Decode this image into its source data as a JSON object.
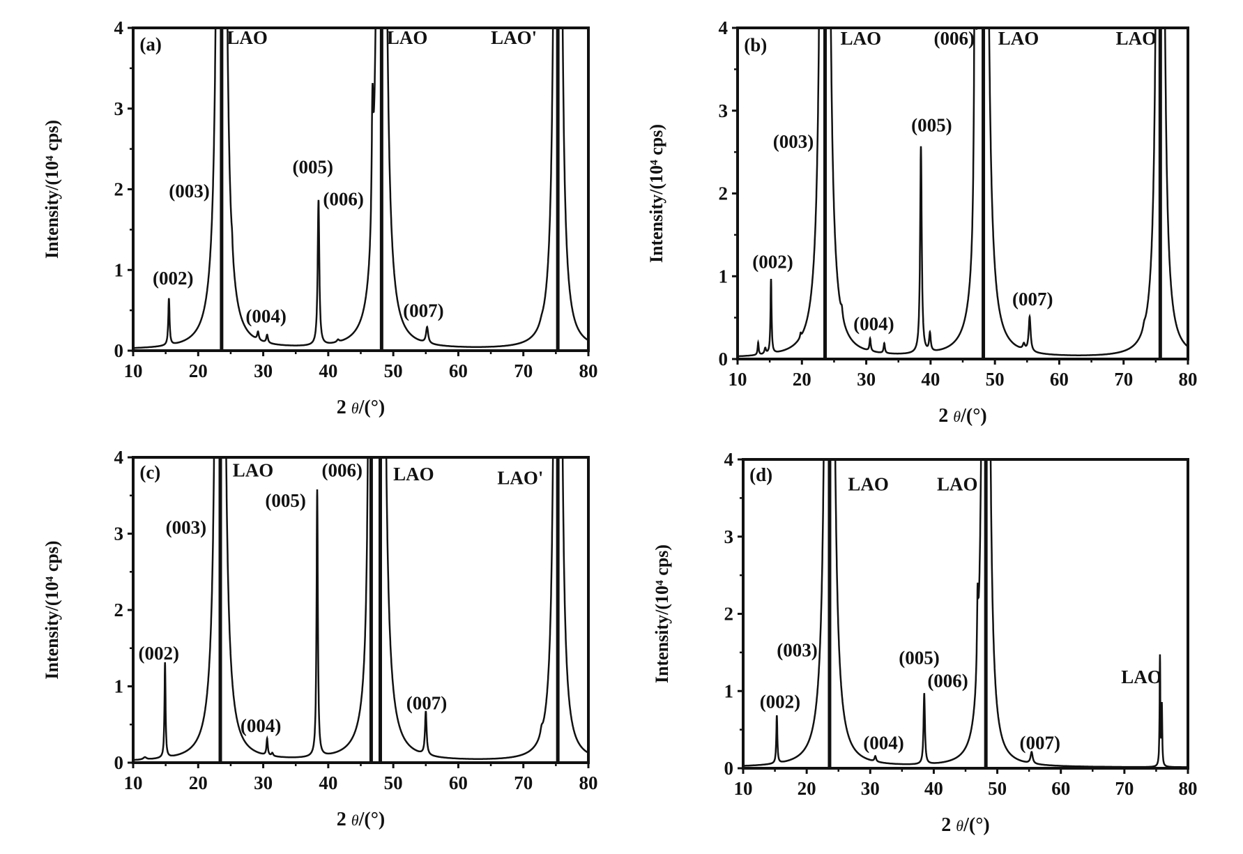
{
  "chart_data": [
    {
      "type": "line",
      "panel_label": "(a)",
      "xlabel_parts": [
        "2 ",
        "θ",
        "/(°)"
      ],
      "ylabel": "Intensity/(10⁴ cps)",
      "xlim": [
        10,
        80
      ],
      "ylim": [
        0,
        4
      ],
      "xticks": [
        "10",
        "20",
        "30",
        "40",
        "50",
        "60",
        "70",
        "80"
      ],
      "yticks": [
        "0",
        "1",
        "2",
        "3",
        "4"
      ],
      "peaks": [
        {
          "x": 15.5,
          "h": 0.58,
          "w": 0.12
        },
        {
          "x": 23.0,
          "h": 1.6,
          "w": 0.15
        },
        {
          "x": 23.6,
          "h": 40,
          "w": 0.3,
          "substrate": true
        },
        {
          "x": 25.2,
          "h": 0.12,
          "w": 0.1
        },
        {
          "x": 29.2,
          "h": 0.1,
          "w": 0.15
        },
        {
          "x": 30.6,
          "h": 0.1,
          "w": 0.15
        },
        {
          "x": 38.5,
          "h": 1.8,
          "w": 0.15
        },
        {
          "x": 41.5,
          "h": 0.03,
          "w": 0.2
        },
        {
          "x": 46.8,
          "h": 1.48,
          "w": 0.15
        },
        {
          "x": 47.9,
          "h": 1.95,
          "w": 0.15
        },
        {
          "x": 48.2,
          "h": 40,
          "w": 0.3,
          "substrate": true
        },
        {
          "x": 55.2,
          "h": 0.2,
          "w": 0.2
        },
        {
          "x": 72.8,
          "h": 0.03,
          "w": 0.3
        },
        {
          "x": 75.3,
          "h": 40,
          "w": 0.25,
          "substrate": true
        }
      ],
      "annotations": [
        {
          "text": "LAO",
          "x": 24.4,
          "y": 3.8
        },
        {
          "text": "LAO",
          "x": 49.0,
          "y": 3.8
        },
        {
          "text": "LAO'",
          "x": 65.0,
          "y": 3.8
        },
        {
          "text": "(003)",
          "x": 15.5,
          "y": 1.9
        },
        {
          "text": "(005)",
          "x": 34.5,
          "y": 2.2
        },
        {
          "text": "(006)",
          "x": 39.2,
          "y": 1.8
        },
        {
          "text": "(002)",
          "x": 13.0,
          "y": 0.82
        },
        {
          "text": "(004)",
          "x": 27.3,
          "y": 0.35
        },
        {
          "text": "(007)",
          "x": 51.5,
          "y": 0.42
        }
      ]
    },
    {
      "type": "line",
      "panel_label": "(b)",
      "xlabel_parts": [
        "2 ",
        "θ",
        "/(°)"
      ],
      "ylabel": "Intensity/(10⁴ cps)",
      "xlim": [
        10,
        80
      ],
      "ylim": [
        0,
        4
      ],
      "xticks": [
        "10",
        "20",
        "30",
        "40",
        "50",
        "60",
        "70",
        "80"
      ],
      "yticks": [
        "0",
        "1",
        "2",
        "3",
        "4"
      ],
      "peaks": [
        {
          "x": 13.2,
          "h": 0.15,
          "w": 0.1
        },
        {
          "x": 14.3,
          "h": 0.07,
          "w": 0.15
        },
        {
          "x": 15.2,
          "h": 0.9,
          "w": 0.1
        },
        {
          "x": 19.8,
          "h": 0.05,
          "w": 0.1
        },
        {
          "x": 23.0,
          "h": 2.35,
          "w": 0.15
        },
        {
          "x": 23.6,
          "h": 40,
          "w": 0.3,
          "substrate": true
        },
        {
          "x": 26.2,
          "h": 0.1,
          "w": 0.15
        },
        {
          "x": 30.6,
          "h": 0.15,
          "w": 0.12
        },
        {
          "x": 32.8,
          "h": 0.12,
          "w": 0.12
        },
        {
          "x": 38.5,
          "h": 2.5,
          "w": 0.15
        },
        {
          "x": 39.9,
          "h": 0.22,
          "w": 0.15
        },
        {
          "x": 46.9,
          "h": 3.55,
          "w": 0.15
        },
        {
          "x": 48.2,
          "h": 40,
          "w": 0.3,
          "substrate": true
        },
        {
          "x": 54.5,
          "h": 0.07,
          "w": 0.2
        },
        {
          "x": 55.4,
          "h": 0.42,
          "w": 0.18
        },
        {
          "x": 73.2,
          "h": 0.05,
          "w": 0.2
        },
        {
          "x": 75.7,
          "h": 40,
          "w": 0.25,
          "substrate": true
        }
      ],
      "annotations": [
        {
          "text": "LAO",
          "x": 26.0,
          "y": 3.8
        },
        {
          "text": "(006)",
          "x": 40.5,
          "y": 3.8
        },
        {
          "text": "LAO",
          "x": 50.5,
          "y": 3.8
        },
        {
          "text": "LAO",
          "x": 68.8,
          "y": 3.8
        },
        {
          "text": "(003)",
          "x": 15.5,
          "y": 2.55
        },
        {
          "text": "(005)",
          "x": 37.0,
          "y": 2.75
        },
        {
          "text": "(002)",
          "x": 12.3,
          "y": 1.1
        },
        {
          "text": "(004)",
          "x": 28.0,
          "y": 0.35
        },
        {
          "text": "(007)",
          "x": 52.7,
          "y": 0.65
        }
      ]
    },
    {
      "type": "line",
      "panel_label": "(c)",
      "xlabel_parts": [
        "2 ",
        "θ",
        "/(°)"
      ],
      "ylabel": "Intensity/(10⁴ cps)",
      "xlim": [
        10,
        80
      ],
      "ylim": [
        0,
        4
      ],
      "xticks": [
        "10",
        "20",
        "30",
        "40",
        "50",
        "60",
        "70",
        "80"
      ],
      "yticks": [
        "0",
        "1",
        "2",
        "3",
        "4"
      ],
      "peaks": [
        {
          "x": 11.8,
          "h": 0.03,
          "w": 0.3
        },
        {
          "x": 14.9,
          "h": 1.25,
          "w": 0.1
        },
        {
          "x": 22.8,
          "h": 3.2,
          "w": 0.15
        },
        {
          "x": 23.4,
          "h": 40,
          "w": 0.3,
          "substrate": true
        },
        {
          "x": 30.6,
          "h": 0.22,
          "w": 0.12
        },
        {
          "x": 31.4,
          "h": 0.04,
          "w": 0.15
        },
        {
          "x": 38.3,
          "h": 3.5,
          "w": 0.12
        },
        {
          "x": 46.6,
          "h": 40,
          "w": 0.15,
          "substrate": true
        },
        {
          "x": 48.0,
          "h": 40,
          "w": 0.3,
          "substrate": true
        },
        {
          "x": 55.0,
          "h": 0.57,
          "w": 0.15
        },
        {
          "x": 72.8,
          "h": 0.08,
          "w": 0.2
        },
        {
          "x": 75.3,
          "h": 40,
          "w": 0.25,
          "substrate": true
        }
      ],
      "annotations": [
        {
          "text": "LAO",
          "x": 25.3,
          "y": 3.75
        },
        {
          "text": "(006)",
          "x": 39.0,
          "y": 3.75
        },
        {
          "text": "LAO",
          "x": 50.0,
          "y": 3.7
        },
        {
          "text": "LAO'",
          "x": 66.0,
          "y": 3.65
        },
        {
          "text": "(005)",
          "x": 30.3,
          "y": 3.35
        },
        {
          "text": "(003)",
          "x": 15.0,
          "y": 3.0
        },
        {
          "text": "(002)",
          "x": 10.8,
          "y": 1.35
        },
        {
          "text": "(004)",
          "x": 26.5,
          "y": 0.4
        },
        {
          "text": "(007)",
          "x": 52.0,
          "y": 0.7
        }
      ]
    },
    {
      "type": "line",
      "panel_label": "(d)",
      "xlabel_parts": [
        "2 ",
        "θ",
        "/(°)"
      ],
      "ylabel": "Intensity/(10⁴ cps)",
      "xlim": [
        10,
        80
      ],
      "ylim": [
        0,
        4
      ],
      "xticks": [
        "10",
        "20",
        "30",
        "40",
        "50",
        "60",
        "70",
        "80"
      ],
      "yticks": [
        "0",
        "1",
        "2",
        "3",
        "4"
      ],
      "peaks": [
        {
          "x": 15.3,
          "h": 0.62,
          "w": 0.1
        },
        {
          "x": 23.0,
          "h": 1.35,
          "w": 0.15
        },
        {
          "x": 23.6,
          "h": 40,
          "w": 0.3,
          "substrate": true
        },
        {
          "x": 30.8,
          "h": 0.07,
          "w": 0.15
        },
        {
          "x": 38.5,
          "h": 0.92,
          "w": 0.13
        },
        {
          "x": 46.9,
          "h": 0.92,
          "w": 0.12
        },
        {
          "x": 47.8,
          "h": 1.6,
          "w": 0.1
        },
        {
          "x": 48.2,
          "h": 40,
          "w": 0.25,
          "substrate": true
        },
        {
          "x": 55.4,
          "h": 0.15,
          "w": 0.2
        },
        {
          "x": 75.6,
          "h": 1.42,
          "w": 0.07
        },
        {
          "x": 75.9,
          "h": 0.77,
          "w": 0.07
        }
      ],
      "annotations": [
        {
          "text": "LAO",
          "x": 26.5,
          "y": 3.6
        },
        {
          "text": "LAO",
          "x": 40.5,
          "y": 3.6
        },
        {
          "text": "(003)",
          "x": 15.3,
          "y": 1.45
        },
        {
          "text": "(005)",
          "x": 34.5,
          "y": 1.35
        },
        {
          "text": "(006)",
          "x": 39.0,
          "y": 1.05
        },
        {
          "text": "LAO",
          "x": 69.5,
          "y": 1.1
        },
        {
          "text": "(002)",
          "x": 12.6,
          "y": 0.78
        },
        {
          "text": "(004)",
          "x": 28.9,
          "y": 0.25
        },
        {
          "text": "(007)",
          "x": 53.5,
          "y": 0.25
        }
      ]
    }
  ]
}
